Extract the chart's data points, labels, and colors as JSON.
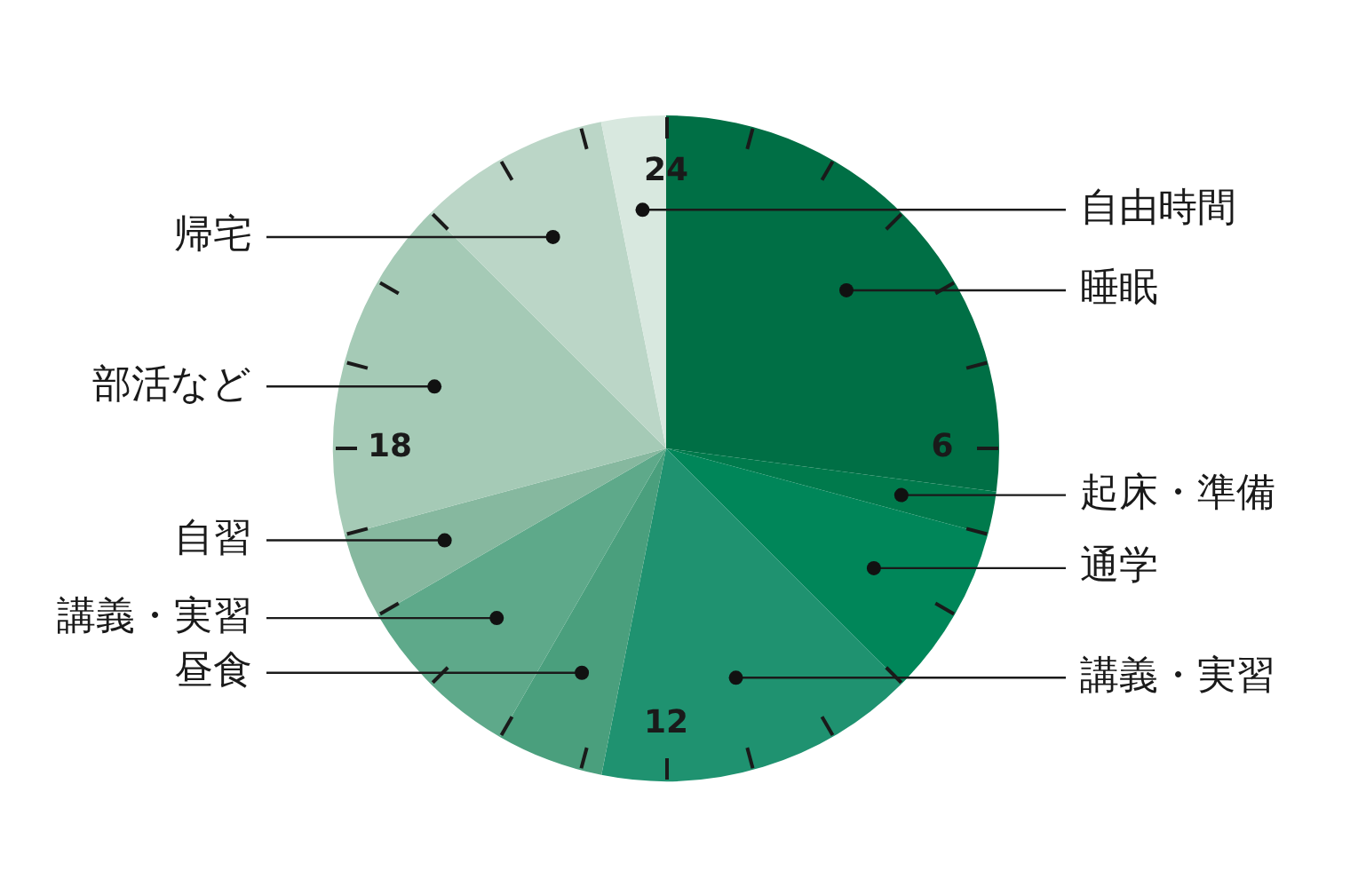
{
  "chart_data": {
    "type": "pie",
    "categories": [
      "睡眠",
      "起床・準備",
      "通学",
      "講義・実習",
      "昼食",
      "講義・実習",
      "自習",
      "部活など",
      "帰宅",
      "自由時間"
    ],
    "values": [
      27.08,
      2.08,
      8.33,
      15.62,
      5.21,
      8.33,
      4.17,
      16.67,
      9.38,
      3.13
    ],
    "colors": [
      "#006f45",
      "#007a4c",
      "#008659",
      "#1f9270",
      "#4a9f7d",
      "#5ea98a",
      "#86b89f",
      "#a5cab6",
      "#bbd6c7",
      "#d8e8df"
    ],
    "annotations": [
      "24",
      "6",
      "12",
      "18"
    ]
  }
}
